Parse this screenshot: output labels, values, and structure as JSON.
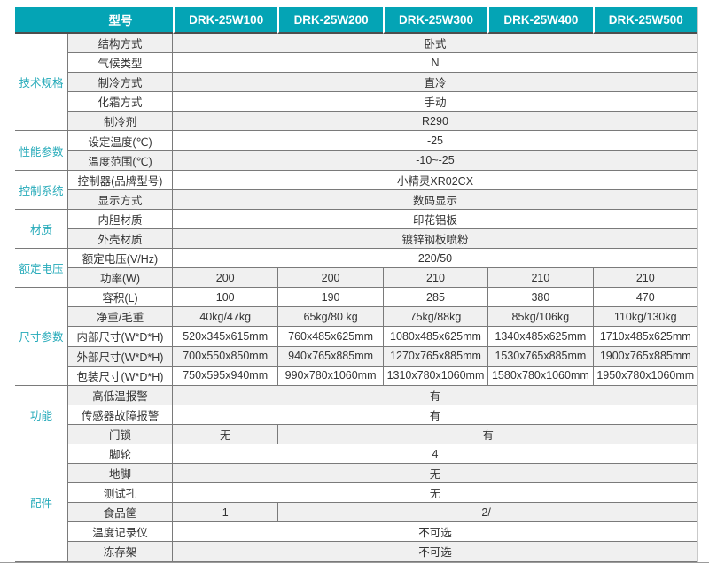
{
  "header": {
    "model_label": "型号",
    "models": [
      "DRK-25W100",
      "DRK-25W200",
      "DRK-25W300",
      "DRK-25W400",
      "DRK-25W500"
    ]
  },
  "groups": [
    {
      "label": "技术规格",
      "span": 5
    },
    {
      "label": "性能参数",
      "span": 2
    },
    {
      "label": "控制系统",
      "span": 2
    },
    {
      "label": "材质",
      "span": 2
    },
    {
      "label": "额定电压",
      "span": 2
    },
    {
      "label": "尺寸参数",
      "span": 5
    },
    {
      "label": "功能",
      "span": 3
    },
    {
      "label": "配件",
      "span": 6
    }
  ],
  "rows": [
    {
      "label": "结构方式",
      "cells": [
        {
          "text": "卧式",
          "span": 5
        }
      ]
    },
    {
      "label": "气候类型",
      "cells": [
        {
          "text": "N",
          "span": 5
        }
      ]
    },
    {
      "label": "制冷方式",
      "cells": [
        {
          "text": "直冷",
          "span": 5
        }
      ]
    },
    {
      "label": "化霜方式",
      "cells": [
        {
          "text": "手动",
          "span": 5
        }
      ]
    },
    {
      "label": "制冷剂",
      "cells": [
        {
          "text": "R290",
          "span": 5
        }
      ]
    },
    {
      "label": "设定温度(℃)",
      "cells": [
        {
          "text": "-25",
          "span": 5
        }
      ]
    },
    {
      "label": "温度范围(℃)",
      "cells": [
        {
          "text": "-10~-25",
          "span": 5
        }
      ]
    },
    {
      "label": "控制器(品牌型号)",
      "cells": [
        {
          "text": "小精灵XR02CX",
          "span": 5
        }
      ]
    },
    {
      "label": "显示方式",
      "cells": [
        {
          "text": "数码显示",
          "span": 5
        }
      ]
    },
    {
      "label": "内胆材质",
      "cells": [
        {
          "text": "印花铝板",
          "span": 5
        }
      ]
    },
    {
      "label": "外壳材质",
      "cells": [
        {
          "text": "镀锌钢板喷粉",
          "span": 5
        }
      ]
    },
    {
      "label": "额定电压(V/Hz)",
      "cells": [
        {
          "text": "220/50",
          "span": 5
        }
      ]
    },
    {
      "label": "功率(W)",
      "cells": [
        {
          "text": "200",
          "span": 1
        },
        {
          "text": "200",
          "span": 1
        },
        {
          "text": "210",
          "span": 1
        },
        {
          "text": "210",
          "span": 1
        },
        {
          "text": "210",
          "span": 1
        }
      ]
    },
    {
      "label": "容积(L)",
      "cells": [
        {
          "text": "100",
          "span": 1
        },
        {
          "text": "190",
          "span": 1
        },
        {
          "text": "285",
          "span": 1
        },
        {
          "text": "380",
          "span": 1
        },
        {
          "text": "470",
          "span": 1
        }
      ]
    },
    {
      "label": "净重/毛重",
      "cells": [
        {
          "text": "40kg/47kg",
          "span": 1
        },
        {
          "text": "65kg/80 kg",
          "span": 1
        },
        {
          "text": "75kg/88kg",
          "span": 1
        },
        {
          "text": "85kg/106kg",
          "span": 1
        },
        {
          "text": "110kg/130kg",
          "span": 1
        }
      ]
    },
    {
      "label": "内部尺寸(W*D*H)",
      "cells": [
        {
          "text": "520x345x615mm",
          "span": 1
        },
        {
          "text": "760x485x625mm",
          "span": 1
        },
        {
          "text": "1080x485x625mm",
          "span": 1
        },
        {
          "text": "1340x485x625mm",
          "span": 1
        },
        {
          "text": "1710x485x625mm",
          "span": 1
        }
      ]
    },
    {
      "label": "外部尺寸(W*D*H)",
      "cells": [
        {
          "text": "700x550x850mm",
          "span": 1
        },
        {
          "text": "940x765x885mm",
          "span": 1
        },
        {
          "text": "1270x765x885mm",
          "span": 1
        },
        {
          "text": "1530x765x885mm",
          "span": 1
        },
        {
          "text": "1900x765x885mm",
          "span": 1
        }
      ]
    },
    {
      "label": "包装尺寸(W*D*H)",
      "cells": [
        {
          "text": "750x595x940mm",
          "span": 1
        },
        {
          "text": "990x780x1060mm",
          "span": 1
        },
        {
          "text": "1310x780x1060mm",
          "span": 1
        },
        {
          "text": "1580x780x1060mm",
          "span": 1
        },
        {
          "text": "1950x780x1060mm",
          "span": 1
        }
      ]
    },
    {
      "label": "高低温报警",
      "cells": [
        {
          "text": "有",
          "span": 5
        }
      ]
    },
    {
      "label": "传感器故障报警",
      "cells": [
        {
          "text": "有",
          "span": 5
        }
      ]
    },
    {
      "label": "门锁",
      "cells": [
        {
          "text": "无",
          "span": 1
        },
        {
          "text": "有",
          "span": 4
        }
      ]
    },
    {
      "label": "脚轮",
      "cells": [
        {
          "text": "4",
          "span": 5
        }
      ]
    },
    {
      "label": "地脚",
      "cells": [
        {
          "text": "无",
          "span": 5
        }
      ]
    },
    {
      "label": "测试孔",
      "cells": [
        {
          "text": "无",
          "span": 5
        }
      ]
    },
    {
      "label": "食品筐",
      "cells": [
        {
          "text": "1",
          "span": 1
        },
        {
          "text": "2/-",
          "span": 4
        }
      ]
    },
    {
      "label": "温度记录仪",
      "cells": [
        {
          "text": "不可选",
          "span": 5
        }
      ]
    },
    {
      "label": "冻存架",
      "cells": [
        {
          "text": "不可选",
          "span": 5
        }
      ]
    }
  ],
  "colors": {
    "header_bg": "#04a4b5",
    "group_text": "#25aab9",
    "row_shade": "#f0f0f0",
    "grid_line": "#7a7a7a"
  }
}
